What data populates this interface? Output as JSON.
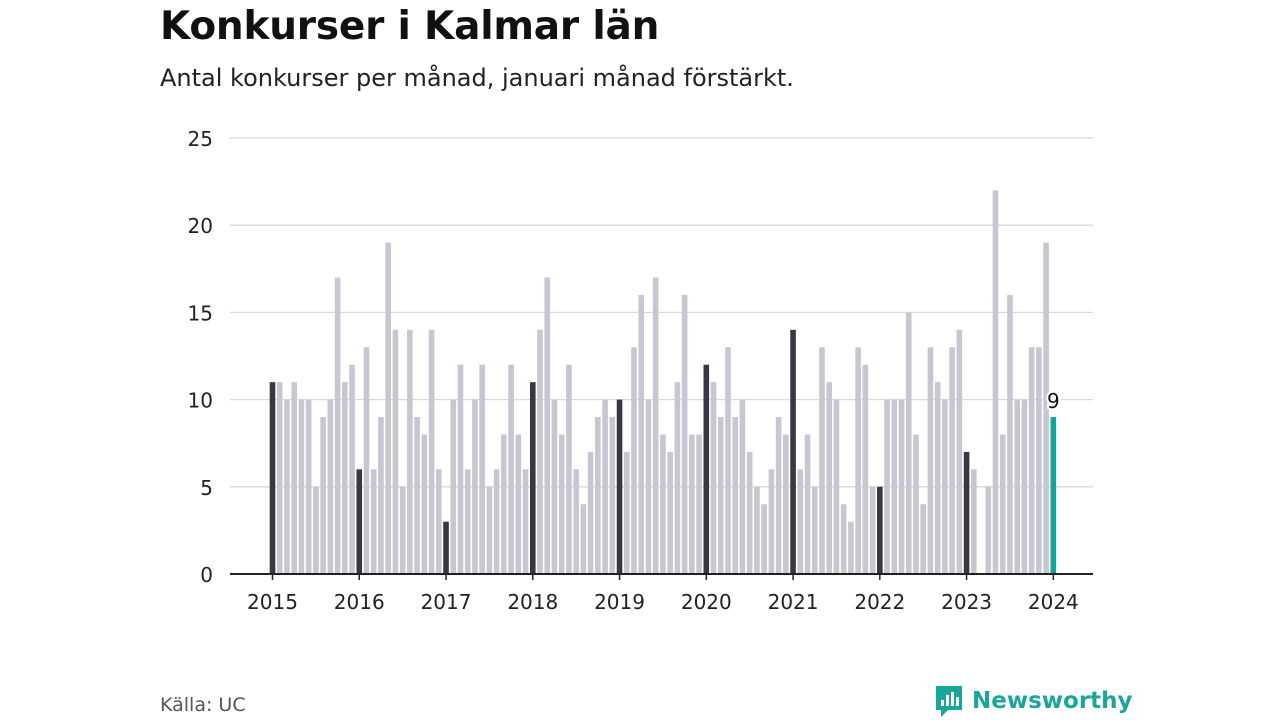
{
  "title": "Konkurser i Kalmar län",
  "subtitle": "Antal konkurser per månad, januari månad förstärkt.",
  "source": "Källa: UC",
  "brand": "Newsworthy",
  "colors": {
    "bar": "#c7c6d1",
    "january": "#383744",
    "latest": "#14a39a",
    "grid": "#d9d9d9",
    "axis": "#222222"
  },
  "chart_data": {
    "type": "bar",
    "title": "Konkurser i Kalmar län",
    "subtitle": "Antal konkurser per månad, januari månad förstärkt.",
    "xlabel": "",
    "ylabel": "",
    "ylim": [
      0,
      25
    ],
    "yticks": [
      0,
      5,
      10,
      15,
      20,
      25
    ],
    "xtick_labels": [
      "2015",
      "2016",
      "2017",
      "2018",
      "2019",
      "2020",
      "2021",
      "2022",
      "2023",
      "2024"
    ],
    "start": "2015-01",
    "end": "2024-01",
    "grid": true,
    "values": [
      11,
      11,
      10,
      11,
      10,
      10,
      5,
      9,
      10,
      17,
      11,
      12,
      6,
      13,
      6,
      9,
      19,
      14,
      5,
      14,
      9,
      8,
      14,
      6,
      3,
      10,
      12,
      6,
      10,
      12,
      5,
      6,
      8,
      12,
      8,
      6,
      11,
      14,
      17,
      10,
      8,
      12,
      6,
      4,
      7,
      9,
      10,
      9,
      10,
      7,
      13,
      16,
      10,
      17,
      8,
      7,
      11,
      16,
      8,
      8,
      12,
      11,
      9,
      13,
      9,
      10,
      7,
      5,
      4,
      6,
      9,
      8,
      14,
      6,
      8,
      5,
      13,
      11,
      10,
      4,
      3,
      13,
      12,
      5,
      5,
      10,
      10,
      10,
      15,
      8,
      4,
      13,
      11,
      10,
      13,
      14,
      7,
      6,
      0,
      5,
      22,
      8,
      16,
      10,
      10,
      13,
      13,
      19,
      9
    ],
    "annotations": [
      {
        "month": "2024-01",
        "text": "9"
      }
    ]
  }
}
